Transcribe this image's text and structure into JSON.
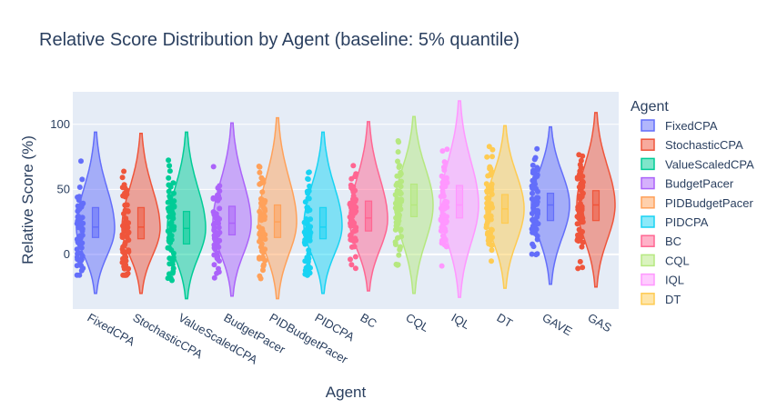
{
  "chart_data": {
    "type": "violin",
    "title": "Relative Score Distribution by Agent (baseline: 5% quantile)",
    "xlabel": "Agent",
    "ylabel": "Relative Score (%)",
    "ylim": [
      -42,
      125
    ],
    "yticks": [
      0,
      50,
      100
    ],
    "legend_title": "Agent",
    "legend_position": "right",
    "categories": [
      "FixedCPA",
      "StochasticCPA",
      "ValueScaledCPA",
      "BudgetPacer",
      "PIDBudgetPacer",
      "PIDCPA",
      "BC",
      "CQL",
      "IQL",
      "DT",
      "GAVE",
      "GAS"
    ],
    "legend_entries": [
      "FixedCPA",
      "StochasticCPA",
      "ValueScaledCPA",
      "BudgetPacer",
      "PIDBudgetPacer",
      "PIDCPA",
      "BC",
      "CQL",
      "IQL",
      "DT"
    ],
    "series": [
      {
        "name": "FixedCPA",
        "color": "#636efa",
        "min": -30,
        "max": 94,
        "q1": 13,
        "median": 21,
        "q3": 36,
        "peak": 20
      },
      {
        "name": "StochasticCPA",
        "color": "#ef553b",
        "min": -30,
        "max": 93,
        "q1": 12,
        "median": 21,
        "q3": 36,
        "peak": 20
      },
      {
        "name": "ValueScaledCPA",
        "color": "#00cc96",
        "min": -34,
        "max": 94,
        "q1": 8,
        "median": 20,
        "q3": 33,
        "peak": 20
      },
      {
        "name": "BudgetPacer",
        "color": "#ab63fa",
        "min": -32,
        "max": 101,
        "q1": 15,
        "median": 24,
        "q3": 37,
        "peak": 24
      },
      {
        "name": "PIDBudgetPacer",
        "color": "#ffa15a",
        "min": -34,
        "max": 105,
        "q1": 13,
        "median": 25,
        "q3": 38,
        "peak": 25
      },
      {
        "name": "PIDCPA",
        "color": "#19d3f3",
        "min": -30,
        "max": 94,
        "q1": 12,
        "median": 21,
        "q3": 36,
        "peak": 22
      },
      {
        "name": "BC",
        "color": "#ff6692",
        "min": -28,
        "max": 102,
        "q1": 18,
        "median": 28,
        "q3": 41,
        "peak": 27
      },
      {
        "name": "CQL",
        "color": "#b6e880",
        "min": -30,
        "max": 106,
        "q1": 29,
        "median": 38,
        "q3": 54,
        "peak": 38
      },
      {
        "name": "IQL",
        "color": "#ff97ff",
        "min": -33,
        "max": 118,
        "q1": 28,
        "median": 38,
        "q3": 53,
        "peak": 38
      },
      {
        "name": "DT",
        "color": "#fecb52",
        "min": -26,
        "max": 99,
        "q1": 24,
        "median": 35,
        "q3": 46,
        "peak": 35
      },
      {
        "name": "GAVE",
        "color": "#636efa",
        "min": -23,
        "max": 98,
        "q1": 26,
        "median": 38,
        "q3": 47,
        "peak": 38
      },
      {
        "name": "GAS",
        "color": "#ef553b",
        "min": -25,
        "max": 109,
        "q1": 26,
        "median": 38,
        "q3": 49,
        "peak": 38
      }
    ]
  }
}
